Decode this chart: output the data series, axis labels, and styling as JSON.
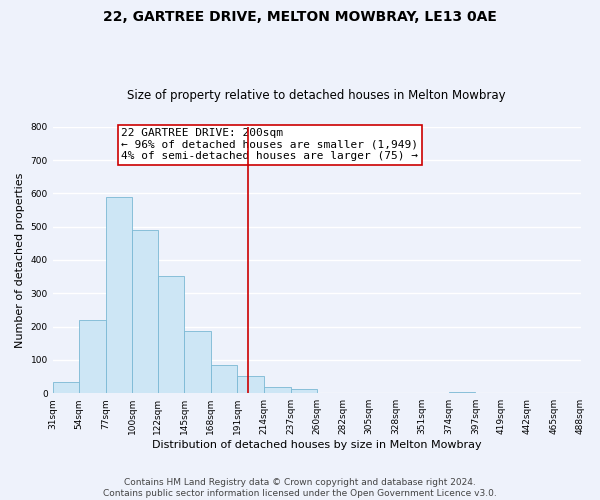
{
  "title": "22, GARTREE DRIVE, MELTON MOWBRAY, LE13 0AE",
  "subtitle": "Size of property relative to detached houses in Melton Mowbray",
  "xlabel": "Distribution of detached houses by size in Melton Mowbray",
  "ylabel": "Number of detached properties",
  "bar_left_edges": [
    31,
    54,
    77,
    100,
    122,
    145,
    168,
    191,
    214,
    237,
    260,
    282,
    305,
    328,
    351,
    374,
    397,
    419,
    442,
    465
  ],
  "bar_heights": [
    33,
    220,
    590,
    490,
    352,
    188,
    85,
    52,
    18,
    14,
    0,
    0,
    0,
    0,
    0,
    5,
    0,
    0,
    0,
    0
  ],
  "bar_widths": [
    23,
    23,
    23,
    22,
    23,
    23,
    23,
    23,
    23,
    23,
    22,
    23,
    23,
    23,
    23,
    23,
    22,
    23,
    23,
    23
  ],
  "bar_color": "#cde6f5",
  "bar_edgecolor": "#7ab8d4",
  "vline_x": 200,
  "vline_color": "#cc0000",
  "vline_linewidth": 1.2,
  "annotation_title": "22 GARTREE DRIVE: 200sqm",
  "annotation_line1": "← 96% of detached houses are smaller (1,949)",
  "annotation_line2": "4% of semi-detached houses are larger (75) →",
  "xlim": [
    31,
    488
  ],
  "ylim": [
    0,
    800
  ],
  "yticks": [
    0,
    100,
    200,
    300,
    400,
    500,
    600,
    700,
    800
  ],
  "xtick_labels": [
    "31sqm",
    "54sqm",
    "77sqm",
    "100sqm",
    "122sqm",
    "145sqm",
    "168sqm",
    "191sqm",
    "214sqm",
    "237sqm",
    "260sqm",
    "282sqm",
    "305sqm",
    "328sqm",
    "351sqm",
    "374sqm",
    "397sqm",
    "419sqm",
    "442sqm",
    "465sqm",
    "488sqm"
  ],
  "xtick_positions": [
    31,
    54,
    77,
    100,
    122,
    145,
    168,
    191,
    214,
    237,
    260,
    282,
    305,
    328,
    351,
    374,
    397,
    419,
    442,
    465,
    488
  ],
  "background_color": "#eef2fb",
  "grid_color": "#ffffff",
  "footer_line1": "Contains HM Land Registry data © Crown copyright and database right 2024.",
  "footer_line2": "Contains public sector information licensed under the Open Government Licence v3.0.",
  "title_fontsize": 10,
  "subtitle_fontsize": 8.5,
  "xlabel_fontsize": 8,
  "ylabel_fontsize": 8,
  "tick_fontsize": 6.5,
  "annotation_fontsize": 8,
  "footer_fontsize": 6.5
}
